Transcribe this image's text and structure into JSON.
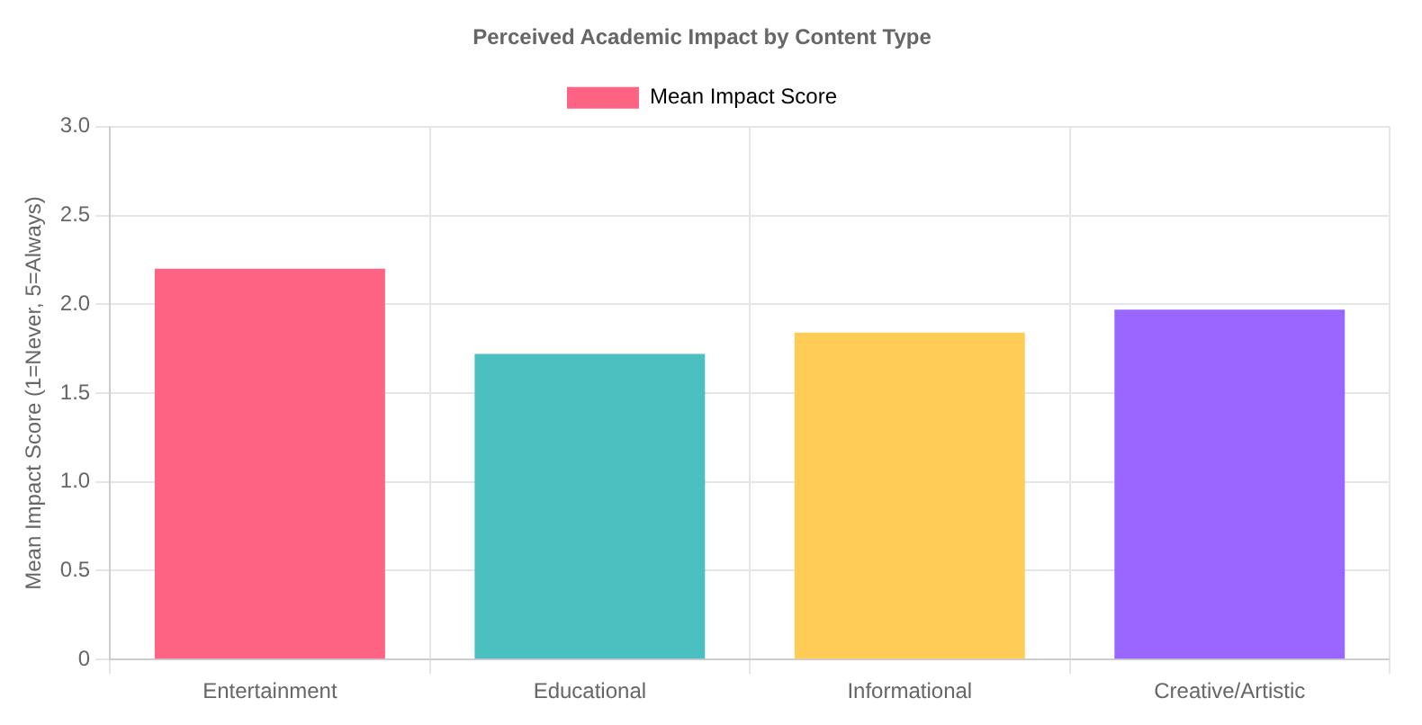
{
  "chart_data": {
    "type": "bar",
    "title": "Perceived Academic Impact by Content Type",
    "ylabel": "Mean Impact Score (1=Never, 5=Always)",
    "categories": [
      "Entertainment",
      "Educational",
      "Informational",
      "Creative/Artistic"
    ],
    "series": [
      {
        "name": "Mean Impact Score",
        "color": "#ff6384",
        "colors": [
          "#ff6384",
          "#4bc0c0",
          "#ffcd56",
          "#9966ff"
        ],
        "values": [
          2.2,
          1.72,
          1.84,
          1.97
        ]
      }
    ],
    "ylim": [
      0,
      3
    ],
    "yticks": [
      0,
      0.5,
      {
        "value": 1,
        "label": "1.0"
      },
      1.5,
      {
        "value": 2,
        "label": "2.0"
      },
      2.5,
      {
        "value": 3,
        "label": "3.0"
      }
    ],
    "grid": true,
    "legend": "top"
  }
}
